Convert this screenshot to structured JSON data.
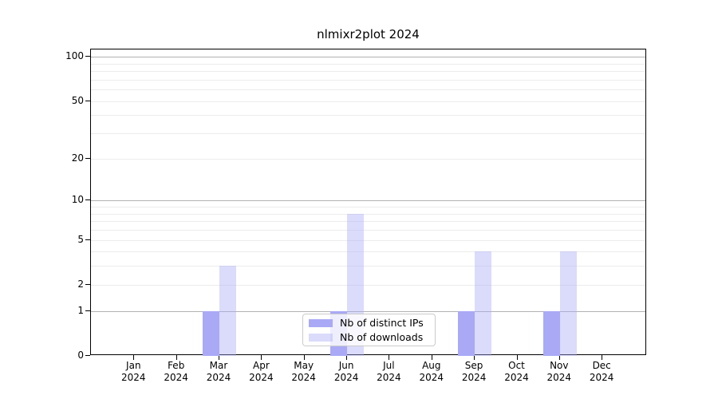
{
  "title": "nlmixr2plot 2024",
  "chart_data": {
    "type": "bar",
    "title": "nlmixr2plot 2024",
    "x_categories": [
      "Jan",
      "Feb",
      "Mar",
      "Apr",
      "May",
      "Jun",
      "Jul",
      "Aug",
      "Sep",
      "Oct",
      "Nov",
      "Dec"
    ],
    "x_year": "2024",
    "series": [
      {
        "name": "Nb of distinct IPs",
        "color": "#a9a9f6",
        "fill_alpha": 1,
        "values": [
          0,
          0,
          1,
          0,
          0,
          1,
          0,
          0,
          1,
          0,
          1,
          0
        ]
      },
      {
        "name": "Nb of downloads",
        "color": "#a9a9f6",
        "fill_alpha": 0.42,
        "values": [
          0,
          0,
          3,
          0,
          0,
          8,
          0,
          0,
          4,
          0,
          4,
          0
        ]
      }
    ],
    "y_scale": "log10(value+1)",
    "ylim": [
      0,
      100
    ],
    "y_tick_labels": [
      "0",
      "1",
      "2",
      "5",
      "10",
      "20",
      "50",
      "100"
    ],
    "y_tick_values": [
      0,
      1,
      2,
      5,
      10,
      20,
      50,
      100
    ],
    "major_gridline_values": [
      1,
      10,
      100
    ],
    "minor_gridline_values": [
      2,
      3,
      4,
      5,
      6,
      7,
      8,
      9,
      20,
      30,
      40,
      50,
      60,
      70,
      80,
      90
    ],
    "grid": true,
    "legend": {
      "position": "lower-center-inside",
      "entries": [
        "Nb of distinct IPs",
        "Nb of downloads"
      ]
    },
    "colors": {
      "bar_dark": "#a9a9f6",
      "bar_light": "#dcdcf8",
      "major_grid": "#b2b2b2",
      "minor_grid": "#ececec",
      "axis": "#000000",
      "legend_border": "#cbcbcb"
    }
  }
}
